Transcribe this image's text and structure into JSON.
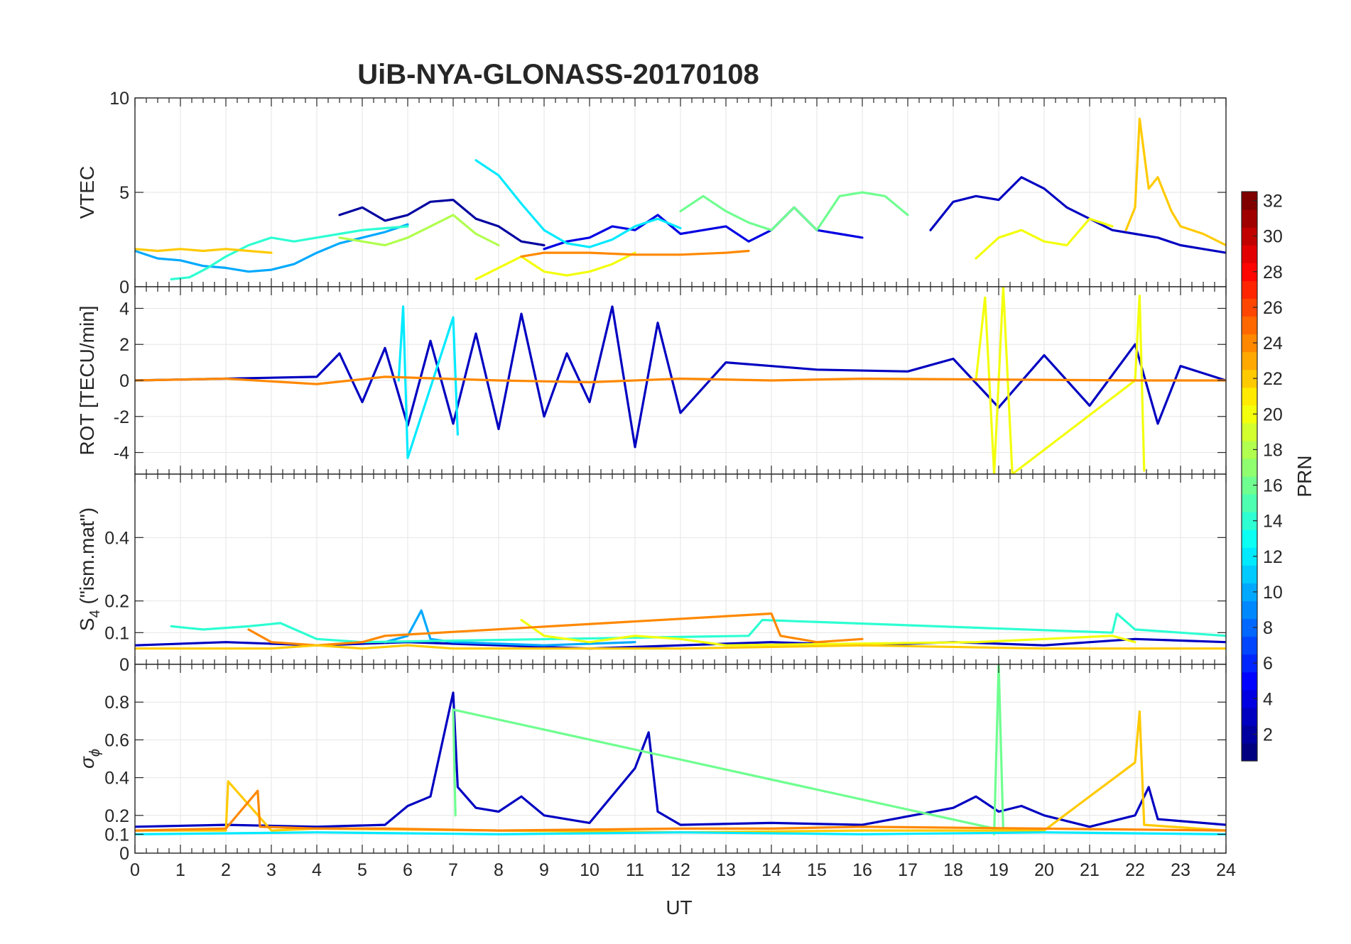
{
  "chart_data": {
    "type": "line",
    "title": "UiB-NYA-GLONASS-20170108",
    "xlabel": "UT",
    "xlim": [
      0,
      24
    ],
    "x_ticks": [
      "0",
      "1",
      "2",
      "3",
      "4",
      "5",
      "6",
      "7",
      "8",
      "9",
      "10",
      "11",
      "12",
      "13",
      "14",
      "15",
      "16",
      "17",
      "18",
      "19",
      "20",
      "21",
      "22",
      "23",
      "24"
    ],
    "grid": true,
    "colormap": "jet",
    "colorbar": {
      "label": "PRN",
      "limits": [
        1,
        32
      ],
      "ticks": [
        "2",
        "4",
        "6",
        "8",
        "10",
        "12",
        "14",
        "16",
        "18",
        "20",
        "22",
        "24",
        "26",
        "28",
        "30",
        "32"
      ],
      "placement": "right"
    },
    "panels": [
      {
        "id": "vtec",
        "ylabel": "VTEC",
        "ylim": [
          0,
          10
        ],
        "y_ticks": [
          0,
          5,
          10
        ],
        "y_tick_labels": [
          "0",
          "5",
          "10"
        ],
        "series": [
          {
            "prn": 2,
            "x": [
              4.5,
              5.0,
              5.5,
              6.0,
              6.5,
              7.0,
              7.5,
              8.0,
              8.5,
              9.0
            ],
            "values": [
              3.8,
              4.2,
              3.5,
              3.8,
              4.5,
              4.6,
              3.6,
              3.2,
              2.4,
              2.2
            ]
          },
          {
            "prn": 4,
            "x": [
              9.0,
              9.5,
              10.0,
              10.5,
              11.0,
              11.5,
              12.0,
              12.5,
              13.0,
              13.5,
              14.0,
              14.5,
              15.0,
              15.5,
              16.0
            ],
            "values": [
              2.0,
              2.4,
              2.6,
              3.2,
              3.0,
              3.8,
              2.8,
              3.0,
              3.2,
              2.4,
              3.0,
              4.2,
              3.0,
              2.8,
              2.6
            ]
          },
          {
            "prn": 3,
            "x": [
              17.5,
              18.0,
              18.5,
              19.0,
              19.5,
              20.0,
              20.5,
              21.0,
              21.5,
              22.0,
              22.5,
              23.0,
              23.5,
              24.0
            ],
            "values": [
              3.0,
              4.5,
              4.8,
              4.6,
              5.8,
              5.2,
              4.2,
              3.6,
              3.0,
              2.8,
              2.6,
              2.2,
              2.0,
              1.8
            ]
          },
          {
            "prn": 10,
            "x": [
              0.0,
              0.5,
              1.0,
              1.5,
              2.0,
              2.5,
              3.0,
              3.5,
              4.0,
              4.5,
              5.0,
              5.5,
              6.0
            ],
            "values": [
              1.9,
              1.5,
              1.4,
              1.1,
              1.0,
              0.8,
              0.9,
              1.2,
              1.8,
              2.3,
              2.6,
              2.9,
              3.3
            ]
          },
          {
            "prn": 12,
            "x": [
              7.5,
              8.0,
              8.5,
              9.0,
              9.5,
              10.0,
              10.5,
              11.0,
              11.5,
              12.0
            ],
            "values": [
              6.7,
              5.9,
              4.4,
              3.0,
              2.3,
              2.1,
              2.5,
              3.2,
              3.6,
              3.1
            ]
          },
          {
            "prn": 14,
            "x": [
              0.8,
              1.2,
              1.6,
              2.0,
              2.5,
              3.0,
              3.5,
              4.0,
              4.5,
              5.0,
              5.5,
              6.0
            ],
            "values": [
              0.4,
              0.5,
              1.0,
              1.6,
              2.2,
              2.6,
              2.4,
              2.6,
              2.8,
              3.0,
              3.1,
              3.2
            ]
          },
          {
            "prn": 16,
            "x": [
              12.0,
              12.5,
              13.0,
              13.5,
              14.0,
              14.5,
              15.0,
              15.5,
              16.0,
              16.5,
              17.0
            ],
            "values": [
              4.0,
              4.8,
              4.0,
              3.4,
              3.0,
              4.2,
              3.0,
              4.8,
              5.0,
              4.8,
              3.8
            ]
          },
          {
            "prn": 18,
            "x": [
              4.5,
              5.0,
              5.5,
              6.0,
              6.5,
              7.0,
              7.5,
              8.0
            ],
            "values": [
              2.6,
              2.4,
              2.2,
              2.6,
              3.2,
              3.8,
              2.8,
              2.2
            ]
          },
          {
            "prn": 20,
            "x": [
              7.5,
              8.0,
              8.5,
              9.0,
              9.5,
              10.0,
              10.5,
              11.0
            ],
            "values": [
              0.4,
              1.0,
              1.6,
              0.8,
              0.6,
              0.8,
              1.2,
              1.8
            ]
          },
          {
            "prn": 20,
            "x": [
              18.5,
              19.0,
              19.5,
              20.0,
              20.5,
              21.0,
              21.5
            ],
            "values": [
              1.5,
              2.6,
              3.0,
              2.4,
              2.2,
              3.6,
              3.2
            ]
          },
          {
            "prn": 22,
            "x": [
              0.0,
              0.5,
              1.0,
              1.5,
              2.0,
              2.5,
              3.0
            ],
            "values": [
              2.0,
              1.9,
              2.0,
              1.9,
              2.0,
              1.9,
              1.8
            ]
          },
          {
            "prn": 22,
            "x": [
              21.8,
              22.0,
              22.1,
              22.3,
              22.5,
              22.8,
              23.0,
              23.5,
              24.0
            ],
            "values": [
              3.0,
              4.2,
              8.9,
              5.2,
              5.8,
              4.0,
              3.2,
              2.8,
              2.2
            ]
          },
          {
            "prn": 24,
            "x": [
              8.5,
              9.0,
              10.0,
              11.0,
              12.0,
              13.0,
              13.5
            ],
            "values": [
              1.6,
              1.8,
              1.8,
              1.7,
              1.7,
              1.8,
              1.9
            ]
          }
        ]
      },
      {
        "id": "rot",
        "ylabel": "ROT [TECU/min]",
        "ylim": [
          -5.2,
          5.2
        ],
        "y_ticks": [
          -4,
          -2,
          0,
          2,
          4
        ],
        "y_tick_labels": [
          "-4",
          "-2",
          "0",
          "2",
          "4"
        ],
        "series": [
          {
            "prn": 3,
            "x": [
              0,
              4,
              4.5,
              5.0,
              5.5,
              6.0,
              6.5,
              7.0,
              7.5,
              8.0,
              8.5,
              9.0,
              9.5,
              10.0,
              10.5,
              11.0,
              11.5,
              12.0,
              13.0,
              14.0,
              15.0,
              17.0,
              18.0,
              19.0,
              20.0,
              21.0,
              22.0,
              22.5,
              23.0,
              24.0
            ],
            "values": [
              0,
              0.2,
              1.5,
              -1.2,
              1.8,
              -2.5,
              2.2,
              -2.4,
              2.6,
              -2.7,
              3.7,
              -2.0,
              1.5,
              -1.2,
              4.1,
              -3.7,
              3.2,
              -1.8,
              1.0,
              0.8,
              0.6,
              0.5,
              1.2,
              -1.5,
              1.4,
              -1.4,
              2.0,
              -2.4,
              0.8,
              0
            ]
          },
          {
            "prn": 12,
            "x": [
              5.8,
              5.9,
              6.0,
              7.0,
              7.1
            ],
            "values": [
              0,
              4.1,
              -4.3,
              3.5,
              -3.0
            ]
          },
          {
            "prn": 20,
            "x": [
              18.5,
              18.7,
              18.9,
              19.1,
              19.3,
              22.0,
              22.1,
              22.2
            ],
            "values": [
              0,
              4.6,
              -5.2,
              5.2,
              -5.2,
              0,
              4.7,
              -5.0
            ]
          },
          {
            "prn": 24,
            "x": [
              0,
              2,
              4,
              5.5,
              8,
              10,
              12,
              14,
              16,
              22.1,
              24
            ],
            "values": [
              0,
              0.1,
              -0.2,
              0.2,
              0,
              -0.1,
              0.1,
              0,
              0.1,
              0,
              0
            ]
          }
        ]
      },
      {
        "id": "s4",
        "ylabel": "S4 (\"ism.mat\")",
        "ylabel_main": "S",
        "ylabel_sub": "4",
        "ylabel_rest": " (\"ism.mat\")",
        "ylim": [
          0,
          0.6
        ],
        "y_ticks": [
          0,
          0.1,
          0.2,
          0.4
        ],
        "y_tick_labels": [
          "0",
          "0.1",
          "0.2",
          "0.4"
        ],
        "series": [
          {
            "prn": 3,
            "x": [
              0,
              2,
              4,
              6,
              8,
              10,
              12,
              14,
              16,
              18,
              20,
              22,
              24
            ],
            "values": [
              0.06,
              0.07,
              0.06,
              0.07,
              0.06,
              0.05,
              0.06,
              0.07,
              0.06,
              0.07,
              0.06,
              0.08,
              0.07
            ]
          },
          {
            "prn": 10,
            "x": [
              5.5,
              6.0,
              6.3,
              6.5,
              7.0,
              9.0,
              11.0
            ],
            "values": [
              0.07,
              0.09,
              0.17,
              0.08,
              0.07,
              0.06,
              0.07
            ]
          },
          {
            "prn": 14,
            "x": [
              0.8,
              1.5,
              2.5,
              3.2,
              4.0,
              5.0,
              13.5,
              13.8,
              21.5,
              21.6,
              22.0,
              23.0,
              24.0
            ],
            "values": [
              0.12,
              0.11,
              0.12,
              0.13,
              0.08,
              0.07,
              0.09,
              0.14,
              0.1,
              0.16,
              0.11,
              0.1,
              0.09
            ]
          },
          {
            "prn": 20,
            "x": [
              8.5,
              9.0,
              10.0,
              11.0,
              12.0,
              13.0,
              18.5,
              20.0,
              21.5,
              22.0
            ],
            "values": [
              0.14,
              0.09,
              0.07,
              0.09,
              0.08,
              0.06,
              0.07,
              0.08,
              0.09,
              0.07
            ]
          },
          {
            "prn": 24,
            "x": [
              2.5,
              3.0,
              4.0,
              5.0,
              5.5,
              14.0,
              14.2,
              15.0,
              16.0
            ],
            "values": [
              0.11,
              0.07,
              0.06,
              0.07,
              0.09,
              0.16,
              0.09,
              0.07,
              0.08
            ]
          },
          {
            "prn": 22,
            "x": [
              0,
              1,
              2,
              3,
              4,
              5,
              6,
              7,
              8,
              12,
              16,
              20,
              24
            ],
            "values": [
              0.05,
              0.05,
              0.05,
              0.05,
              0.06,
              0.05,
              0.06,
              0.05,
              0.05,
              0.05,
              0.06,
              0.05,
              0.05
            ]
          }
        ]
      },
      {
        "id": "sigma_phi",
        "ylabel": "σϕ",
        "ylabel_main": "σ",
        "ylabel_sub": "ϕ",
        "ylim": [
          0,
          1
        ],
        "y_ticks": [
          0,
          0.1,
          0.2,
          0.4,
          0.6,
          0.8
        ],
        "y_tick_labels": [
          "0",
          "0.1",
          "0.2",
          "0.4",
          "0.6",
          "0.8"
        ],
        "series": [
          {
            "prn": 3,
            "x": [
              0,
              2,
              4,
              5.5,
              6.0,
              6.5,
              7.0,
              7.1,
              7.5,
              8.0,
              8.5,
              9.0,
              10.0,
              11.0,
              11.3,
              11.5,
              12.0,
              14.0,
              16.0,
              18.0,
              18.5,
              19.0,
              19.5,
              20.0,
              21.0,
              22.0,
              22.3,
              22.5,
              24.0
            ],
            "values": [
              0.14,
              0.15,
              0.14,
              0.15,
              0.25,
              0.3,
              0.85,
              0.35,
              0.24,
              0.22,
              0.3,
              0.2,
              0.16,
              0.45,
              0.64,
              0.22,
              0.15,
              0.16,
              0.15,
              0.24,
              0.3,
              0.22,
              0.25,
              0.2,
              0.14,
              0.2,
              0.35,
              0.18,
              0.15
            ]
          },
          {
            "prn": 16,
            "x": [
              18.9,
              19.0,
              19.1,
              7.0,
              7.05
            ],
            "values": [
              0.1,
              1.0,
              0.12,
              0.76,
              0.2
            ]
          },
          {
            "prn": 22,
            "x": [
              0,
              2.0,
              2.05,
              3,
              4,
              8,
              12,
              16,
              20,
              22.0,
              22.1,
              22.2,
              24
            ],
            "values": [
              0.12,
              0.12,
              0.38,
              0.12,
              0.13,
              0.12,
              0.11,
              0.12,
              0.12,
              0.48,
              0.75,
              0.15,
              0.12
            ]
          },
          {
            "prn": 24,
            "x": [
              0,
              2,
              2.7,
              2.75,
              4,
              5.5,
              8,
              12,
              14,
              16,
              24
            ],
            "values": [
              0.12,
              0.13,
              0.33,
              0.14,
              0.13,
              0.13,
              0.12,
              0.13,
              0.13,
              0.14,
              0.12
            ]
          },
          {
            "prn": 12,
            "x": [
              0,
              4,
              8,
              12,
              16,
              20,
              24
            ],
            "values": [
              0.1,
              0.11,
              0.1,
              0.11,
              0.1,
              0.11,
              0.1
            ]
          }
        ]
      }
    ]
  }
}
